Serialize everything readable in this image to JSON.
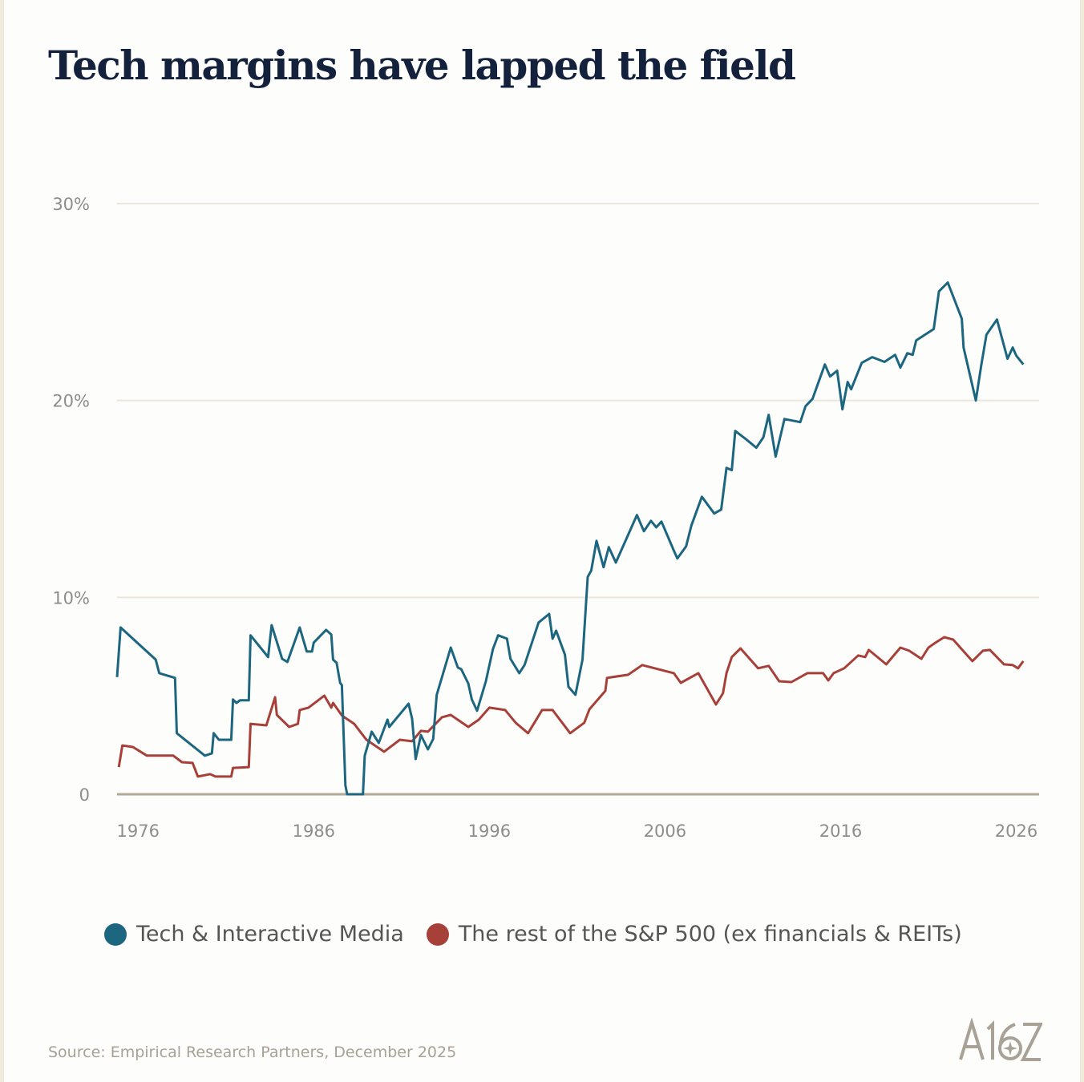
{
  "title": "Tech margins have lapped the field",
  "source": "Source: Empirical Research Partners, December 2025",
  "logo_text": "A16Z",
  "chart_data": {
    "type": "line",
    "title": "Tech margins have lapped the field",
    "xlabel": "",
    "ylabel": "",
    "xlim": [
      1974.8,
      2027.3
    ],
    "ylim": [
      0,
      30
    ],
    "x_ticks": [
      1976,
      1986,
      1996,
      2006,
      2016,
      2026
    ],
    "x_tick_labels": [
      "1976",
      "1986",
      "1996",
      "2006",
      "2016",
      "2026"
    ],
    "y_ticks": [
      0,
      10,
      20,
      30
    ],
    "y_tick_labels": [
      "0",
      "10%",
      "20%",
      "30%"
    ],
    "grid": "horizontal",
    "legend_position": "bottom",
    "series": [
      {
        "name": "Tech & Interactive Media",
        "color": "#1c6680",
        "points": [
          [
            1974.8,
            5.95
          ],
          [
            1975.0,
            8.47
          ],
          [
            1977.0,
            6.84
          ],
          [
            1977.2,
            6.15
          ],
          [
            1978.1,
            5.91
          ],
          [
            1978.2,
            3.1
          ],
          [
            1979.8,
            1.96
          ],
          [
            1980.2,
            2.08
          ],
          [
            1980.3,
            3.1
          ],
          [
            1980.6,
            2.77
          ],
          [
            1981.3,
            2.77
          ],
          [
            1981.4,
            4.81
          ],
          [
            1981.6,
            4.64
          ],
          [
            1981.8,
            4.77
          ],
          [
            1982.3,
            4.77
          ],
          [
            1982.4,
            8.07
          ],
          [
            1983.4,
            6.97
          ],
          [
            1983.6,
            8.59
          ],
          [
            1984.2,
            6.88
          ],
          [
            1984.5,
            6.72
          ],
          [
            1985.2,
            8.47
          ],
          [
            1985.6,
            7.25
          ],
          [
            1985.9,
            7.25
          ],
          [
            1986.0,
            7.7
          ],
          [
            1986.7,
            8.35
          ],
          [
            1987.0,
            8.11
          ],
          [
            1987.1,
            6.84
          ],
          [
            1987.3,
            6.68
          ],
          [
            1987.5,
            5.66
          ],
          [
            1987.6,
            5.54
          ],
          [
            1987.8,
            0.45
          ],
          [
            1987.9,
            0
          ],
          [
            1988.8,
            0
          ],
          [
            1988.9,
            1.96
          ],
          [
            1989.3,
            3.18
          ],
          [
            1989.7,
            2.61
          ],
          [
            1990.2,
            3.79
          ],
          [
            1990.3,
            3.42
          ],
          [
            1991.4,
            4.6
          ],
          [
            1991.6,
            3.83
          ],
          [
            1991.8,
            1.79
          ],
          [
            1992.1,
            3.01
          ],
          [
            1992.5,
            2.28
          ],
          [
            1992.8,
            2.81
          ],
          [
            1993.0,
            5.05
          ],
          [
            1993.8,
            7.45
          ],
          [
            1994.2,
            6.44
          ],
          [
            1994.4,
            6.35
          ],
          [
            1994.8,
            5.62
          ],
          [
            1995.0,
            4.81
          ],
          [
            1995.3,
            4.24
          ],
          [
            1995.8,
            5.74
          ],
          [
            1995.9,
            6.15
          ],
          [
            1996.2,
            7.37
          ],
          [
            1996.5,
            8.07
          ],
          [
            1997.0,
            7.9
          ],
          [
            1997.2,
            6.88
          ],
          [
            1997.7,
            6.15
          ],
          [
            1998.0,
            6.56
          ],
          [
            1998.8,
            8.72
          ],
          [
            1999.4,
            9.16
          ],
          [
            1999.6,
            7.9
          ],
          [
            1999.8,
            8.31
          ],
          [
            2000.3,
            7.09
          ],
          [
            2000.5,
            5.46
          ],
          [
            2000.9,
            5.05
          ],
          [
            2001.3,
            6.84
          ],
          [
            2001.6,
            11.04
          ],
          [
            2001.8,
            11.36
          ],
          [
            2002.1,
            12.87
          ],
          [
            2002.5,
            11.53
          ],
          [
            2002.8,
            12.55
          ],
          [
            2003.2,
            11.77
          ],
          [
            2004.4,
            14.18
          ],
          [
            2004.8,
            13.36
          ],
          [
            2005.2,
            13.89
          ],
          [
            2005.5,
            13.56
          ],
          [
            2005.8,
            13.85
          ],
          [
            2006.5,
            12.38
          ],
          [
            2006.7,
            11.98
          ],
          [
            2007.2,
            12.59
          ],
          [
            2007.5,
            13.65
          ],
          [
            2008.1,
            15.11
          ],
          [
            2008.8,
            14.26
          ],
          [
            2009.2,
            14.46
          ],
          [
            2009.5,
            16.58
          ],
          [
            2009.8,
            16.46
          ],
          [
            2010.0,
            18.45
          ],
          [
            2010.6,
            18.04
          ],
          [
            2011.2,
            17.6
          ],
          [
            2011.6,
            18.13
          ],
          [
            2011.9,
            19.27
          ],
          [
            2012.3,
            17.15
          ],
          [
            2012.8,
            19.06
          ],
          [
            2013.7,
            18.9
          ],
          [
            2014.0,
            19.71
          ],
          [
            2014.4,
            20.08
          ],
          [
            2015.1,
            21.83
          ],
          [
            2015.4,
            21.22
          ],
          [
            2015.8,
            21.51
          ],
          [
            2016.1,
            19.55
          ],
          [
            2016.4,
            20.94
          ],
          [
            2016.6,
            20.57
          ],
          [
            2017.2,
            21.91
          ],
          [
            2017.8,
            22.2
          ],
          [
            2018.5,
            21.96
          ],
          [
            2019.1,
            22.32
          ],
          [
            2019.4,
            21.67
          ],
          [
            2019.8,
            22.4
          ],
          [
            2020.1,
            22.32
          ],
          [
            2020.3,
            23.05
          ],
          [
            2021.3,
            23.63
          ],
          [
            2021.6,
            25.54
          ],
          [
            2022.1,
            25.99
          ],
          [
            2022.9,
            24.15
          ],
          [
            2023.0,
            22.69
          ],
          [
            2023.7,
            20.0
          ],
          [
            2024.0,
            21.75
          ],
          [
            2024.3,
            23.34
          ],
          [
            2024.9,
            24.11
          ],
          [
            2025.5,
            22.12
          ],
          [
            2025.8,
            22.69
          ],
          [
            2026.0,
            22.28
          ],
          [
            2026.4,
            21.83
          ]
        ]
      },
      {
        "name": "The rest of the S&P 500 (ex financials & REITs)",
        "color": "#a8403a",
        "points": [
          [
            1974.9,
            1.38
          ],
          [
            1975.1,
            2.48
          ],
          [
            1975.7,
            2.4
          ],
          [
            1976.5,
            1.96
          ],
          [
            1978.0,
            1.96
          ],
          [
            1978.5,
            1.63
          ],
          [
            1979.1,
            1.59
          ],
          [
            1979.4,
            0.9
          ],
          [
            1980.1,
            1.02
          ],
          [
            1980.4,
            0.9
          ],
          [
            1981.3,
            0.9
          ],
          [
            1981.4,
            1.34
          ],
          [
            1982.3,
            1.38
          ],
          [
            1982.4,
            3.58
          ],
          [
            1983.3,
            3.5
          ],
          [
            1983.8,
            4.93
          ],
          [
            1983.9,
            4.03
          ],
          [
            1984.6,
            3.42
          ],
          [
            1985.1,
            3.58
          ],
          [
            1985.2,
            4.28
          ],
          [
            1985.7,
            4.4
          ],
          [
            1986.6,
            5.01
          ],
          [
            1987.0,
            4.4
          ],
          [
            1987.1,
            4.64
          ],
          [
            1987.6,
            4.0
          ],
          [
            1988.3,
            3.58
          ],
          [
            1989.0,
            2.77
          ],
          [
            1990.0,
            2.16
          ],
          [
            1990.9,
            2.77
          ],
          [
            1991.6,
            2.69
          ],
          [
            1992.1,
            3.22
          ],
          [
            1992.5,
            3.18
          ],
          [
            1993.3,
            3.91
          ],
          [
            1993.8,
            4.03
          ],
          [
            1994.8,
            3.42
          ],
          [
            1995.4,
            3.79
          ],
          [
            1996.0,
            4.4
          ],
          [
            1996.9,
            4.28
          ],
          [
            1997.5,
            3.63
          ],
          [
            1998.2,
            3.1
          ],
          [
            1999.0,
            4.28
          ],
          [
            1999.6,
            4.28
          ],
          [
            2000.6,
            3.1
          ],
          [
            2001.4,
            3.63
          ],
          [
            2001.7,
            4.32
          ],
          [
            2002.6,
            5.25
          ],
          [
            2002.7,
            5.91
          ],
          [
            2003.9,
            6.07
          ],
          [
            2004.7,
            6.56
          ],
          [
            2006.5,
            6.15
          ],
          [
            2006.9,
            5.66
          ],
          [
            2007.9,
            6.15
          ],
          [
            2008.9,
            4.56
          ],
          [
            2009.3,
            5.13
          ],
          [
            2009.5,
            6.15
          ],
          [
            2009.8,
            6.97
          ],
          [
            2010.3,
            7.41
          ],
          [
            2011.3,
            6.4
          ],
          [
            2011.9,
            6.52
          ],
          [
            2012.5,
            5.74
          ],
          [
            2013.2,
            5.7
          ],
          [
            2014.1,
            6.15
          ],
          [
            2015.0,
            6.15
          ],
          [
            2015.3,
            5.78
          ],
          [
            2015.6,
            6.15
          ],
          [
            2016.2,
            6.4
          ],
          [
            2017.0,
            7.05
          ],
          [
            2017.4,
            6.97
          ],
          [
            2017.6,
            7.33
          ],
          [
            2018.6,
            6.6
          ],
          [
            2019.4,
            7.45
          ],
          [
            2019.9,
            7.29
          ],
          [
            2020.6,
            6.88
          ],
          [
            2021.0,
            7.45
          ],
          [
            2021.4,
            7.7
          ],
          [
            2021.9,
            7.98
          ],
          [
            2022.4,
            7.86
          ],
          [
            2023.5,
            6.76
          ],
          [
            2024.1,
            7.29
          ],
          [
            2024.5,
            7.33
          ],
          [
            2025.3,
            6.6
          ],
          [
            2025.8,
            6.56
          ],
          [
            2026.1,
            6.4
          ],
          [
            2026.4,
            6.76
          ]
        ]
      }
    ]
  }
}
